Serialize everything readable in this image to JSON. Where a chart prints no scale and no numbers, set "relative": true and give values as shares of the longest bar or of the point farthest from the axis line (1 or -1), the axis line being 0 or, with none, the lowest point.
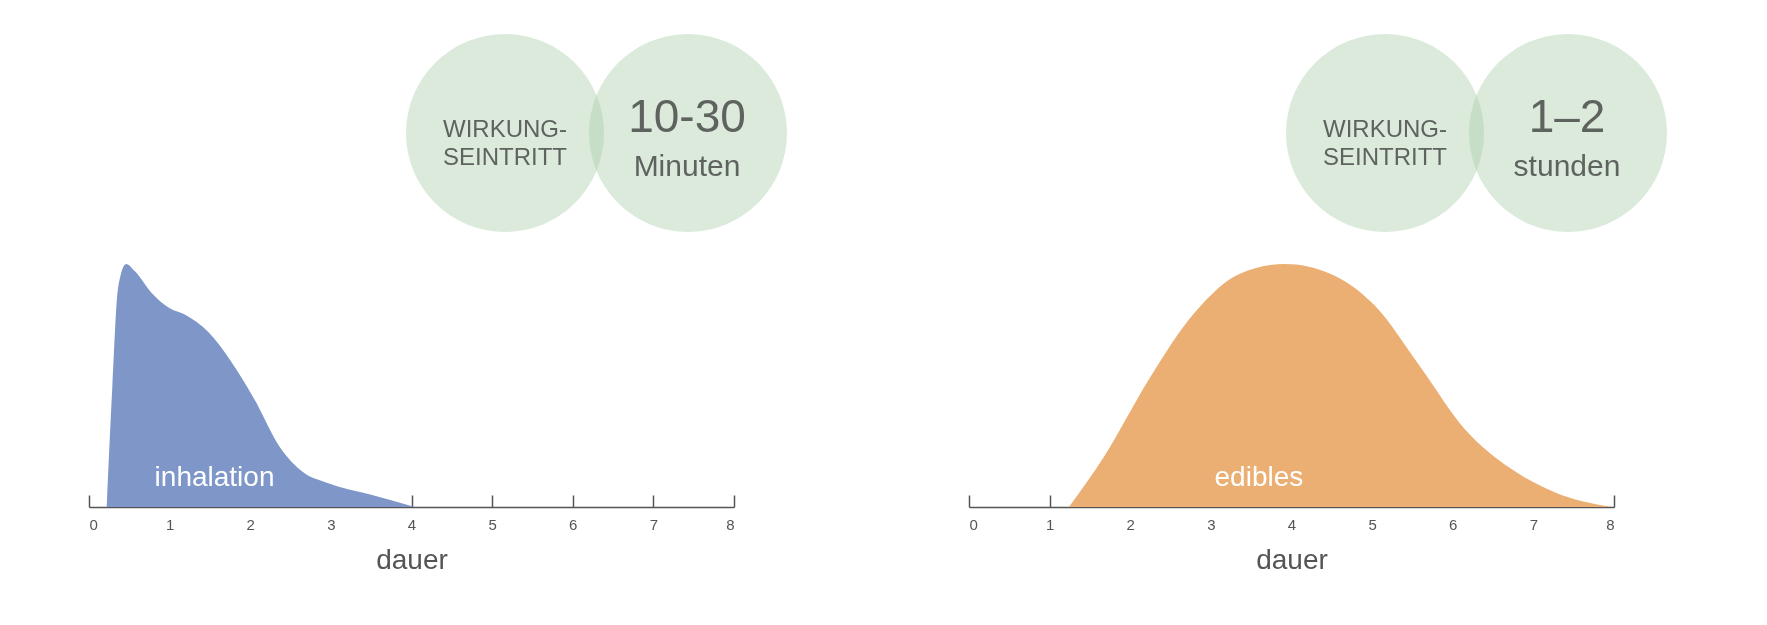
{
  "chart_data": [
    {
      "type": "area",
      "relative": true,
      "xlabel": "dauer",
      "xlim": [
        0,
        8
      ],
      "xticks": [
        0,
        1,
        2,
        3,
        4,
        5,
        6,
        7,
        8
      ],
      "grid": false,
      "annotations": [
        "WIRKUNG-\nSEINTRITT",
        "10-30",
        "Minuten"
      ],
      "series": [
        {
          "name": "inhalation",
          "color": "#7e96c8",
          "x": [
            0.22,
            0.29,
            0.36,
            0.46,
            0.57,
            0.78,
            0.99,
            1.2,
            1.48,
            1.76,
            2.04,
            2.36,
            2.67,
            2.95,
            3.5,
            4.04
          ],
          "values": [
            0,
            0.5,
            0.9,
            1,
            0.97,
            0.88,
            0.82,
            0.79,
            0.72,
            0.6,
            0.45,
            0.25,
            0.14,
            0.1,
            0.05,
            0
          ]
        }
      ]
    },
    {
      "type": "area",
      "relative": true,
      "xlabel": "dauer",
      "xlim": [
        0,
        8
      ],
      "xticks": [
        0,
        1,
        2,
        3,
        4,
        5,
        6,
        7,
        8
      ],
      "grid": false,
      "annotations": [
        "WIRKUNG-\nSEINTRITT",
        "1–2",
        "stunden"
      ],
      "series": [
        {
          "name": "edibles",
          "color": "#ebaf73",
          "x": [
            1.24,
            1.68,
            2.24,
            2.8,
            3.36,
            3.92,
            4.48,
            5.03,
            5.59,
            6.15,
            6.71,
            7.27,
            7.97
          ],
          "values": [
            0,
            0.21,
            0.53,
            0.8,
            0.96,
            1,
            0.96,
            0.83,
            0.58,
            0.32,
            0.16,
            0.06,
            0
          ]
        }
      ]
    }
  ]
}
